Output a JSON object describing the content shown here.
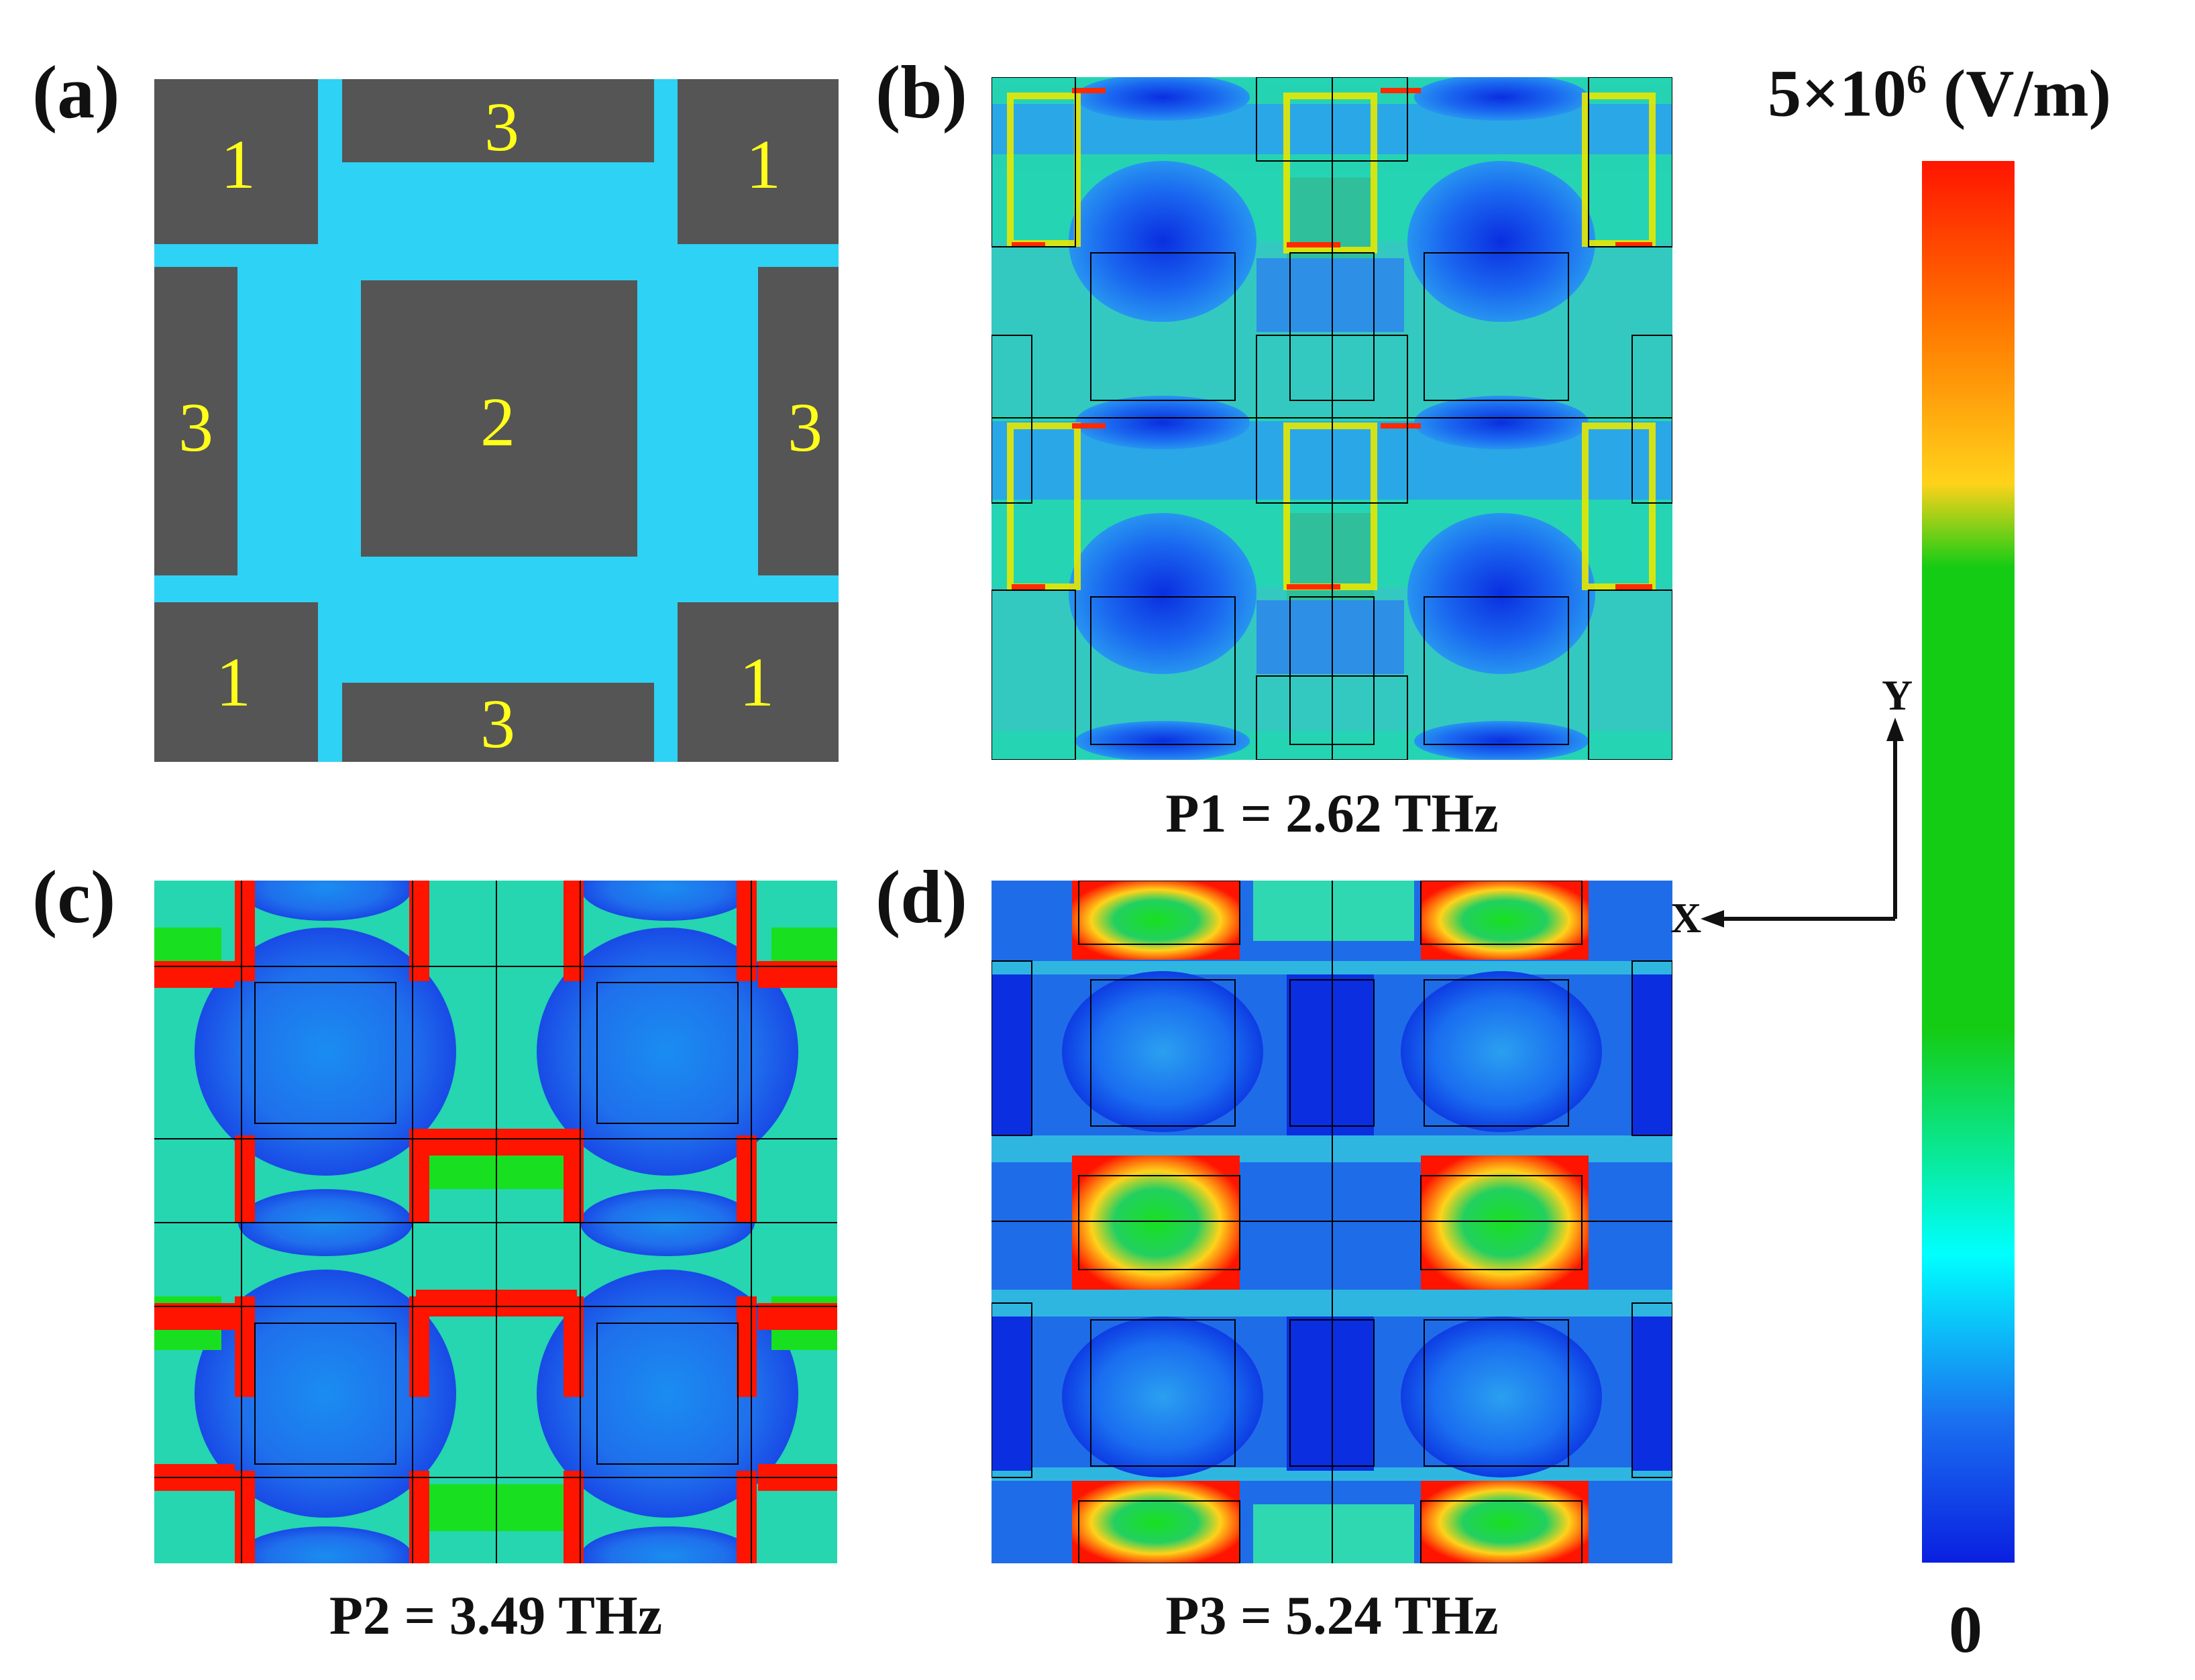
{
  "panels": {
    "a": {
      "label": "(a)",
      "numbers": [
        "1",
        "3",
        "1",
        "3",
        "2",
        "3",
        "1",
        "3",
        "1"
      ],
      "colors": {
        "substrate": "#2ed2f5",
        "metal": "#555555",
        "number": "#ffff1a"
      }
    },
    "b": {
      "label": "(b)",
      "caption": "P1 = 2.62 THz"
    },
    "c": {
      "label": "(c)",
      "caption": "P2 = 3.49 THz"
    },
    "d": {
      "label": "(d)",
      "caption": "P3 = 5.24 THz"
    }
  },
  "axes": {
    "y_label": "Y",
    "x_label": "X"
  },
  "colorbar": {
    "max_label_base": "5×10",
    "max_label_exp": "6",
    "max_label_unit": " (V/m)",
    "min_label": "0",
    "stops": [
      "#ff1500",
      "#ff7a00",
      "#ffd21a",
      "#15cc15",
      "#00ffff",
      "#1a6ef0",
      "#0a1fe0"
    ]
  }
}
